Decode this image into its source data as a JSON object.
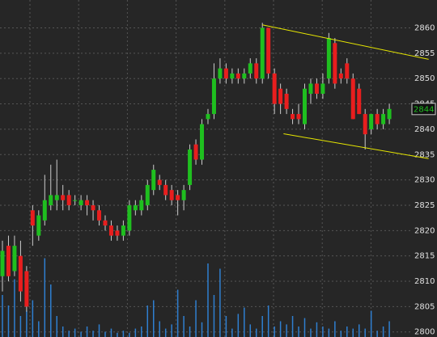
{
  "chart_data": {
    "type": "candlestick",
    "open": [
      2811,
      2817,
      2812,
      2815,
      2812,
      2824,
      2819,
      2822,
      2825,
      2826,
      2827,
      2827,
      2826,
      2825,
      2826,
      2825,
      2824,
      2822,
      2821,
      2820,
      2819,
      2820,
      2824,
      2824,
      2825,
      2828,
      2830,
      2829,
      2828,
      2827,
      2826,
      2829,
      2837,
      2834,
      2842,
      2843,
      2850,
      2852,
      2850,
      2851,
      2850,
      2851,
      2853,
      2850,
      2860,
      2851,
      2848,
      2847,
      2843,
      2843,
      2841,
      2847,
      2849,
      2847,
      2850,
      2857,
      2851,
      2853,
      2850,
      2848,
      2843,
      2840,
      2843,
      2841,
      2842
    ],
    "high": [
      2818,
      2819,
      2819,
      2818,
      2813,
      2825,
      2824,
      2831,
      2833,
      2834,
      2829,
      2828,
      2827,
      2827,
      2827,
      2826,
      2825,
      2823,
      2822,
      2821,
      2822,
      2826,
      2826,
      2827,
      2830,
      2833,
      2831,
      2830,
      2829,
      2828,
      2829,
      2837,
      2838,
      2842,
      2844,
      2853,
      2854,
      2853,
      2852,
      2852,
      2852,
      2854,
      2854,
      2861,
      2860,
      2852,
      2849,
      2848,
      2844,
      2845,
      2849,
      2850,
      2850,
      2851,
      2859,
      2858,
      2852,
      2854,
      2851,
      2849,
      2844,
      2843,
      2844,
      2844,
      2845
    ],
    "low": [
      2808,
      2810,
      2811,
      2806,
      2804,
      2817,
      2818,
      2821,
      2824,
      2824,
      2824,
      2824,
      2825,
      2824,
      2823,
      2822,
      2821,
      2820,
      2818,
      2818,
      2818,
      2819,
      2823,
      2823,
      2824,
      2827,
      2828,
      2826,
      2825,
      2823,
      2824,
      2828,
      2833,
      2833,
      2841,
      2842,
      2849,
      2849,
      2849,
      2849,
      2849,
      2850,
      2849,
      2849,
      2850,
      2843,
      2843,
      2843,
      2841,
      2841,
      2840,
      2845,
      2846,
      2846,
      2849,
      2848,
      2849,
      2849,
      2842,
      2843,
      2836,
      2839,
      2840,
      2840,
      2841
    ],
    "close": [
      2816,
      2811,
      2817,
      2808,
      2805,
      2821,
      2823,
      2826,
      2827,
      2827,
      2826,
      2825,
      2826,
      2826,
      2825,
      2824,
      2822,
      2821,
      2819,
      2819,
      2821,
      2825,
      2825,
      2826,
      2829,
      2832,
      2829,
      2827,
      2826,
      2826,
      2828,
      2836,
      2834,
      2841,
      2843,
      2850,
      2852,
      2850,
      2851,
      2850,
      2851,
      2853,
      2850,
      2860,
      2851,
      2845,
      2845,
      2844,
      2842,
      2842,
      2848,
      2849,
      2847,
      2849,
      2858,
      2849,
      2850,
      2850,
      2842,
      2843,
      2839,
      2843,
      2841,
      2843,
      2844
    ],
    "volume": [
      40,
      30,
      55,
      20,
      25,
      35,
      15,
      75,
      50,
      20,
      10,
      6,
      8,
      5,
      10,
      6,
      12,
      5,
      8,
      4,
      6,
      4,
      8,
      10,
      30,
      35,
      15,
      8,
      12,
      45,
      20,
      10,
      35,
      14,
      70,
      40,
      65,
      20,
      8,
      22,
      28,
      12,
      8,
      20,
      30,
      10,
      15,
      12,
      20,
      10,
      18,
      8,
      14,
      10,
      8,
      15,
      6,
      10,
      8,
      12,
      8,
      25,
      6,
      10,
      15
    ],
    "ylim": [
      2799,
      2865.5
    ],
    "yticks": [
      2800,
      2805,
      2810,
      2815,
      2820,
      2825,
      2830,
      2835,
      2840,
      2845,
      2850,
      2855,
      2860
    ],
    "volume_lim": [
      0,
      100
    ],
    "last_price": 2844,
    "trend_lines": [
      {
        "from": [
          43,
          2860.6
        ],
        "to": [
          70.5,
          2853.8
        ],
        "color": "#e8e800"
      },
      {
        "from": [
          46.5,
          2839.1
        ],
        "to": [
          70.5,
          2834.2
        ],
        "color": "#e8e800"
      }
    ],
    "colors": {
      "up": "#1fbf1f",
      "down": "#e81e1e",
      "wick": "#cccccc",
      "volume": "#2f7fd0"
    },
    "grid": true
  }
}
